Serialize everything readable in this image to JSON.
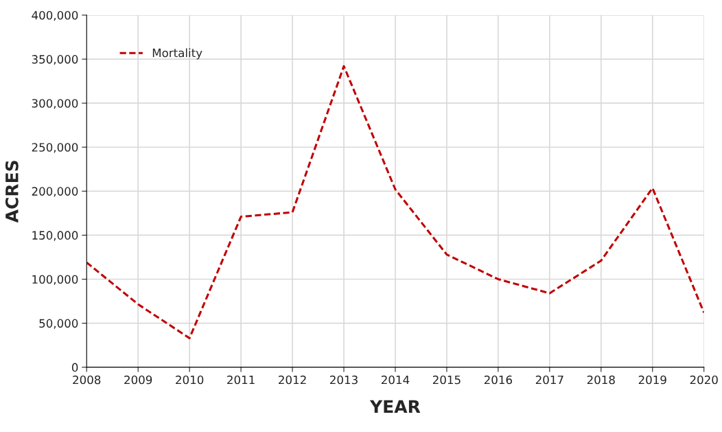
{
  "chart_data": {
    "type": "line",
    "xlabel": "YEAR",
    "ylabel": "ACRES",
    "x": [
      2008,
      2009,
      2010,
      2011,
      2012,
      2013,
      2014,
      2015,
      2016,
      2017,
      2018,
      2019,
      2020
    ],
    "series": [
      {
        "name": "Mortality",
        "color": "#c00000",
        "line_style": "dashed",
        "values": [
          119000,
          71500,
          33000,
          171000,
          176000,
          342000,
          202000,
          128000,
          100000,
          84000,
          121000,
          203500,
          62000
        ]
      }
    ],
    "xlim": [
      2008,
      2020
    ],
    "xticks": [
      2008,
      2009,
      2010,
      2011,
      2012,
      2013,
      2014,
      2015,
      2016,
      2017,
      2018,
      2019,
      2020
    ],
    "ylim": [
      0,
      400000
    ],
    "yticks": [
      {
        "value": 0,
        "label": "0"
      },
      {
        "value": 50000,
        "label": "50,000"
      },
      {
        "value": 100000,
        "label": "100,000"
      },
      {
        "value": 150000,
        "label": "150,000"
      },
      {
        "value": 200000,
        "label": "200,000"
      },
      {
        "value": 250000,
        "label": "250,000"
      },
      {
        "value": 300000,
        "label": "300,000"
      },
      {
        "value": 350000,
        "label": "350,000"
      },
      {
        "value": 400000,
        "label": "400,000"
      }
    ],
    "grid": true,
    "legend": "top left",
    "marker": "none"
  }
}
